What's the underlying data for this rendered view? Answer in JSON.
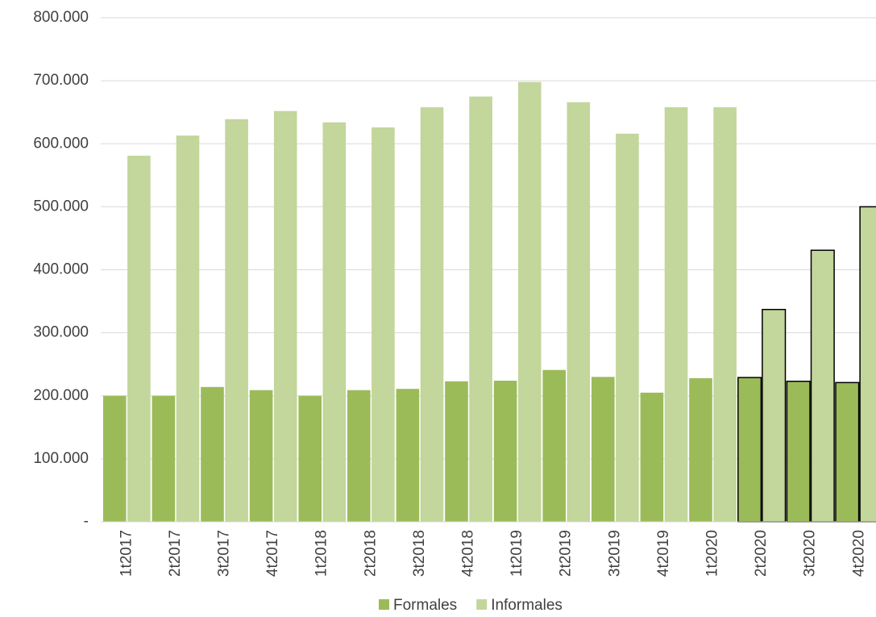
{
  "chart_data": {
    "type": "bar",
    "categories": [
      "1t2017",
      "2t2017",
      "3t2017",
      "4t2017",
      "1t2018",
      "2t2018",
      "3t2018",
      "4t2018",
      "1t2019",
      "2t2019",
      "3t2019",
      "4t2019",
      "1t2020",
      "2t2020",
      "3t2020",
      "4t2020"
    ],
    "series": [
      {
        "name": "Formales",
        "color": "#9bbb59",
        "values": [
          200000,
          200000,
          214000,
          209000,
          200000,
          209000,
          211000,
          223000,
          224000,
          241000,
          230000,
          205000,
          228000,
          229000,
          223000,
          221000
        ]
      },
      {
        "name": "Informales",
        "color": "#c3d69b",
        "values": [
          581000,
          613000,
          639000,
          652000,
          634000,
          626000,
          658000,
          675000,
          698000,
          666000,
          616000,
          658000,
          658000,
          337000,
          431000,
          500000
        ]
      }
    ],
    "ylim": [
      0,
      800000
    ],
    "yticks": [
      {
        "value": 0,
        "label": "-"
      },
      {
        "value": 100000,
        "label": "100.000"
      },
      {
        "value": 200000,
        "label": "200.000"
      },
      {
        "value": 300000,
        "label": "300.000"
      },
      {
        "value": 400000,
        "label": "400.000"
      },
      {
        "value": 500000,
        "label": "500.000"
      },
      {
        "value": 600000,
        "label": "600.000"
      },
      {
        "value": 700000,
        "label": "700.000"
      },
      {
        "value": 800000,
        "label": "800.000"
      }
    ],
    "grid": true,
    "legend": "bottom",
    "outlined_categories": [
      13,
      14,
      15
    ]
  }
}
